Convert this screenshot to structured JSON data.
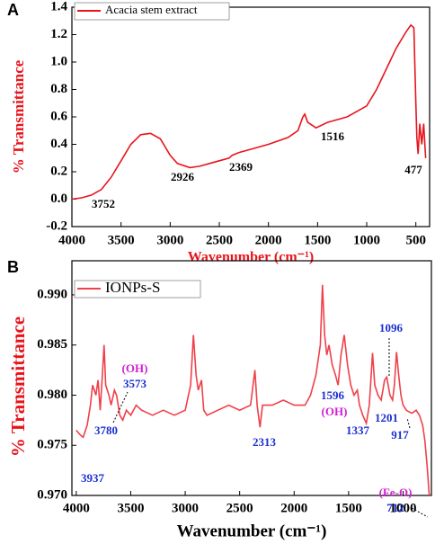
{
  "chart_data": [
    {
      "type": "line",
      "panel_label": "A",
      "x_label": "Wavenumber (cm⁻¹)",
      "y_label": "% Transmittance",
      "x": [
        4000,
        3900,
        3800,
        3752,
        3700,
        3600,
        3500,
        3400,
        3300,
        3200,
        3100,
        3000,
        2926,
        2800,
        2700,
        2600,
        2500,
        2400,
        2369,
        2300,
        2200,
        2000,
        1800,
        1700,
        1650,
        1630,
        1600,
        1516,
        1400,
        1200,
        1000,
        900,
        800,
        700,
        600,
        550,
        520,
        500,
        490,
        477,
        460,
        440,
        420,
        400
      ],
      "series": [
        {
          "name": "Acacia stem extract",
          "color": "#e8141c",
          "values": [
            0.0,
            0.01,
            0.03,
            0.05,
            0.07,
            0.16,
            0.28,
            0.4,
            0.47,
            0.48,
            0.44,
            0.32,
            0.26,
            0.23,
            0.24,
            0.26,
            0.28,
            0.3,
            0.32,
            0.34,
            0.36,
            0.4,
            0.45,
            0.5,
            0.6,
            0.62,
            0.56,
            0.52,
            0.56,
            0.6,
            0.68,
            0.8,
            0.95,
            1.1,
            1.22,
            1.27,
            1.25,
            0.7,
            0.45,
            0.33,
            0.55,
            0.4,
            0.55,
            0.3
          ]
        }
      ],
      "xlim": [
        4000,
        360
      ],
      "xticks": [
        4000,
        3500,
        3000,
        2500,
        2000,
        1500,
        1000,
        500
      ],
      "ylim": [
        -0.2,
        1.4
      ],
      "yticks": [
        -0.2,
        {
          "value": 0,
          "label": "0.0"
        },
        0.2,
        0.4,
        0.6,
        0.8,
        {
          "value": 1,
          "label": "1.0"
        },
        1.2,
        1.4
      ],
      "annotations": [
        {
          "text": "3752",
          "color": "#000000"
        },
        {
          "text": "2926",
          "color": "#000000"
        },
        {
          "text": "2369",
          "color": "#000000"
        },
        {
          "text": "1516",
          "color": "#000000"
        },
        {
          "text": "477",
          "color": "#000000"
        }
      ]
    },
    {
      "type": "line",
      "panel_label": "B",
      "x_label": "Wavenumber (cm⁻¹)",
      "y_label": "% Transmittance",
      "x": [
        4000,
        3960,
        3937,
        3900,
        3870,
        3850,
        3820,
        3800,
        3780,
        3760,
        3745,
        3730,
        3700,
        3680,
        3650,
        3630,
        3600,
        3573,
        3540,
        3500,
        3450,
        3400,
        3300,
        3200,
        3100,
        3000,
        2950,
        2925,
        2900,
        2880,
        2850,
        2830,
        2800,
        2700,
        2600,
        2500,
        2400,
        2360,
        2340,
        2313,
        2290,
        2200,
        2100,
        2000,
        1900,
        1850,
        1800,
        1760,
        1740,
        1720,
        1700,
        1680,
        1650,
        1620,
        1596,
        1570,
        1540,
        1510,
        1480,
        1450,
        1420,
        1400,
        1370,
        1337,
        1310,
        1280,
        1260,
        1230,
        1201,
        1170,
        1150,
        1120,
        1096,
        1080,
        1060,
        1040,
        1020,
        1000,
        970,
        940,
        917,
        880,
        850,
        820,
        800,
        780,
        760
      ],
      "series": [
        {
          "name": "IONPs-S",
          "color": "#f0404a",
          "values": [
            0.9765,
            0.976,
            0.9758,
            0.977,
            0.979,
            0.981,
            0.98,
            0.9815,
            0.9785,
            0.982,
            0.985,
            0.981,
            0.98,
            0.979,
            0.9805,
            0.98,
            0.978,
            0.9775,
            0.9785,
            0.978,
            0.979,
            0.9785,
            0.978,
            0.9785,
            0.978,
            0.9785,
            0.981,
            0.986,
            0.982,
            0.9805,
            0.9815,
            0.9785,
            0.978,
            0.9785,
            0.979,
            0.9785,
            0.979,
            0.9825,
            0.979,
            0.9768,
            0.979,
            0.979,
            0.9795,
            0.979,
            0.979,
            0.98,
            0.982,
            0.985,
            0.991,
            0.986,
            0.984,
            0.985,
            0.983,
            0.982,
            0.981,
            0.984,
            0.986,
            0.983,
            0.981,
            0.98,
            0.9805,
            0.979,
            0.978,
            0.9772,
            0.979,
            0.9842,
            0.981,
            0.98,
            0.9795,
            0.9815,
            0.9818,
            0.98,
            0.9795,
            0.981,
            0.9843,
            0.982,
            0.98,
            0.979,
            0.9785,
            0.9783,
            0.9782,
            0.9785,
            0.978,
            0.977,
            0.9755,
            0.973,
            0.97
          ]
        }
      ],
      "xlim": [
        4040,
        740
      ],
      "xticks": [
        4000,
        3500,
        3000,
        2500,
        2000,
        1500,
        1000
      ],
      "ylim": [
        0.97,
        0.9934
      ],
      "yticks": [
        {
          "value": 0.97,
          "label": "0.970"
        },
        0.975,
        {
          "value": 0.98,
          "label": "0.980"
        },
        0.985,
        {
          "value": 0.99,
          "label": "0.990"
        }
      ],
      "annotations": [
        {
          "text": "3937",
          "color": "#1a2fd0"
        },
        {
          "text": "3780",
          "color": "#1a2fd0"
        },
        {
          "text": "(OH)",
          "color": "#d020d0"
        },
        {
          "text": "3573",
          "color": "#1a2fd0"
        },
        {
          "text": "2313",
          "color": "#1a2fd0"
        },
        {
          "text": "1596",
          "color": "#1a2fd0"
        },
        {
          "text": "(OH)",
          "color": "#d020d0"
        },
        {
          "text": "1337",
          "color": "#1a2fd0"
        },
        {
          "text": "1201",
          "color": "#1a2fd0"
        },
        {
          "text": "1096",
          "color": "#1a2fd0"
        },
        {
          "text": "917",
          "color": "#1a2fd0"
        },
        {
          "text": "(Fe-O)",
          "color": "#d020d0"
        },
        {
          "text": "712",
          "color": "#1a2fd0"
        }
      ]
    }
  ]
}
